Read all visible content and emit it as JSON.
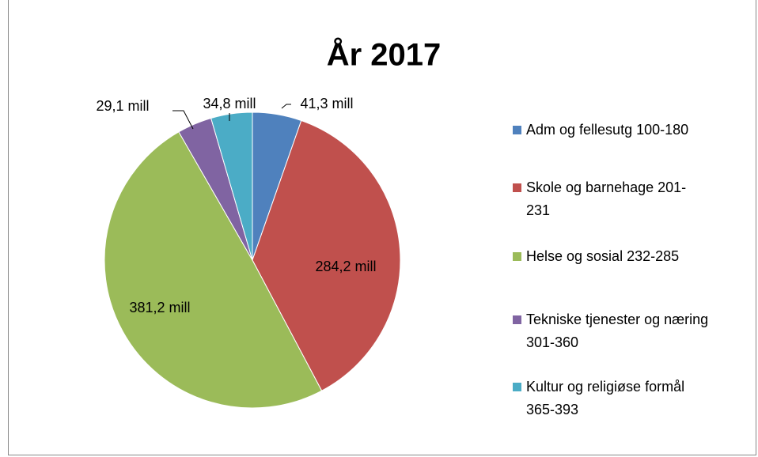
{
  "chart_data": {
    "type": "pie",
    "title": "År 2017",
    "categories": [
      "Adm og fellesutg 100-180",
      "Skole og barnehage 201-231",
      "Helse og sosial 232-285",
      "Tekniske tjenester og næring 301-360",
      "Kultur og religiøse formål 365-393"
    ],
    "values": [
      41.3,
      284.2,
      381.2,
      29.1,
      34.8
    ],
    "value_labels": [
      "41,3 mill",
      "284,2 mill",
      "381,2 mill",
      "29,1 mill",
      "34,8 mill"
    ],
    "colors": [
      "#4f81bd",
      "#c0504d",
      "#9bbb59",
      "#8064a2",
      "#4bacc6"
    ],
    "legend": "right"
  }
}
